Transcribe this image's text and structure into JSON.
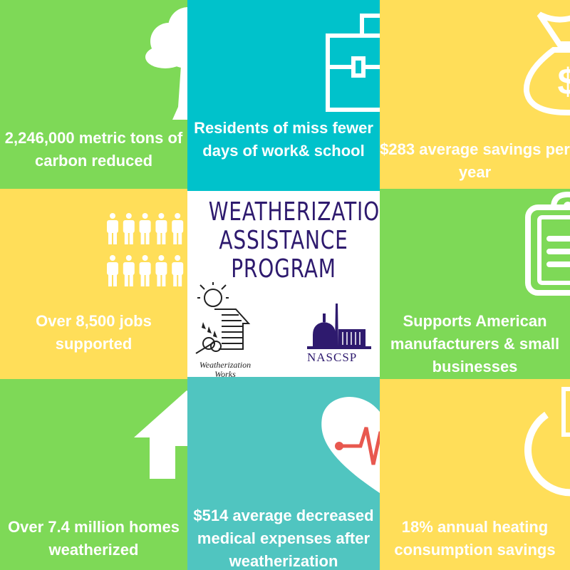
{
  "colors": {
    "green": "#7ed957",
    "teal": "#00c2cb",
    "yellow": "#ffde59",
    "teal_light": "#50c5c0",
    "purple": "#2e1a6e",
    "heartbeat": "#e8584f"
  },
  "tiles": [
    {
      "icon": "tree-icon",
      "text": "2,246,000 metric tons of carbon reduced"
    },
    {
      "icon": "briefcase-icon",
      "text": "Residents of miss fewer days of work& school"
    },
    {
      "icon": "money-bag-icon",
      "text": "$283 average savings per year"
    },
    {
      "icon": "people-icon",
      "text": "Over 8,500 jobs supported"
    },
    {
      "icon": "clipboard-icon",
      "text": "Supports American manufacturers & small businesses"
    },
    {
      "icon": "house-icon",
      "text": "Over 7.4 million homes weatherized"
    },
    {
      "icon": "heart-rate-icon",
      "text": "$514 average decreased medical expenses after weatherization"
    },
    {
      "icon": "power-icon",
      "text": "18% annual heating consumption savings"
    }
  ],
  "center": {
    "title_lines": [
      "WEATHERIZATION",
      "ASSISTANCE",
      "PROGRAM"
    ],
    "logo_left": "Weatherization Works",
    "logo_right": "NASCSP"
  }
}
